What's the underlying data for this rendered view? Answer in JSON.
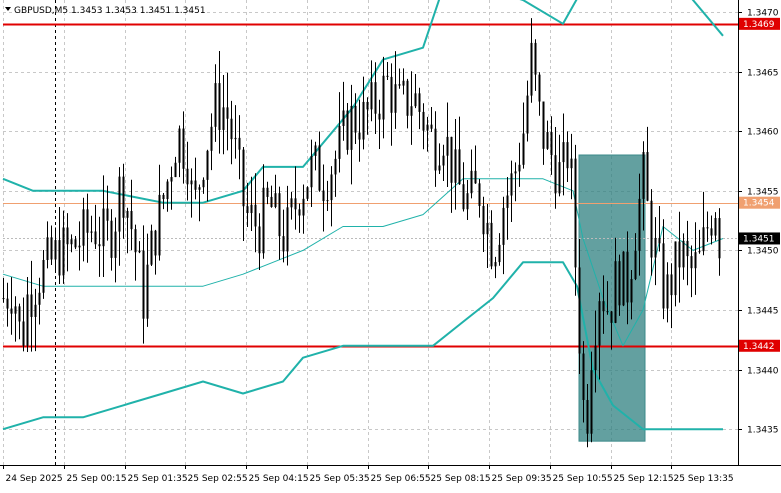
{
  "header": {
    "symbol_info": "GBPUSD,M5  1.3453 1.3453 1.3451 1.3451"
  },
  "colors": {
    "background": "#ffffff",
    "grid": "#c8c8c8",
    "candle": "#000000",
    "bollinger": "#20b2aa",
    "support_resistance": "#e00000",
    "current_price_line": "#f0a070",
    "highlight_zone": "#2f8080",
    "last_price_box": "#000000"
  },
  "price_labels": {
    "top": "1.3469",
    "current": "1.3454",
    "last": "1.3451",
    "bottom": "1.3442"
  },
  "time_axis": [
    "24 Sep 2025",
    "25 Sep 00:15",
    "25 Sep 01:35",
    "25 Sep 02:55",
    "25 Sep 04:15",
    "25 Sep 05:35",
    "25 Sep 06:55",
    "25 Sep 08:15",
    "25 Sep 09:35",
    "25 Sep 10:55",
    "25 Sep 12:15",
    "25 Sep 13:35"
  ],
  "chart_data": {
    "type": "candlestick",
    "symbol": "GBPUSD",
    "timeframe": "M5",
    "ylim": [
      1.3432,
      1.3471
    ],
    "y_ticks": [
      1.3435,
      1.344,
      1.3445,
      1.345,
      1.3455,
      1.346,
      1.3465,
      1.347
    ],
    "y_tick_labels": [
      "1.3435",
      "1.3440",
      "1.3445",
      "1.3450",
      "1.3455",
      "1.3460",
      "1.3465",
      "1.3470"
    ],
    "x_tick_labels": [
      "24 Sep 2025",
      "25 Sep 00:15",
      "25 Sep 01:35",
      "25 Sep 02:55",
      "25 Sep 04:15",
      "25 Sep 05:35",
      "25 Sep 06:55",
      "25 Sep 08:15",
      "25 Sep 09:35",
      "25 Sep 10:55",
      "25 Sep 12:15",
      "25 Sep 13:35"
    ],
    "horizontal_levels": [
      {
        "price": 1.3469,
        "style": "resistance"
      },
      {
        "price": 1.3442,
        "style": "support"
      },
      {
        "price": 1.3454,
        "style": "current"
      },
      {
        "price": 1.3451,
        "style": "last"
      }
    ],
    "highlight_zone": {
      "price_top": 1.3458,
      "price_bottom": 1.3434,
      "from_candle": 125,
      "to_candle": 138
    },
    "close_path": [
      [
        0,
        1.3446
      ],
      [
        10,
        1.3447
      ],
      [
        18,
        1.3442
      ],
      [
        24,
        1.3446
      ],
      [
        36,
        1.3448
      ],
      [
        48,
        1.3449
      ],
      [
        56,
        1.345
      ],
      [
        66,
        1.345
      ],
      [
        78,
        1.3451
      ],
      [
        90,
        1.3452
      ],
      [
        102,
        1.3451
      ],
      [
        110,
        1.3452
      ],
      [
        118,
        1.3456
      ],
      [
        128,
        1.3452
      ],
      [
        140,
        1.3446
      ],
      [
        150,
        1.3451
      ],
      [
        162,
        1.3455
      ],
      [
        174,
        1.346
      ],
      [
        184,
        1.3458
      ],
      [
        190,
        1.3453
      ],
      [
        200,
        1.3458
      ],
      [
        212,
        1.3462
      ],
      [
        222,
        1.3462
      ],
      [
        230,
        1.3459
      ],
      [
        242,
        1.3453
      ],
      [
        256,
        1.3452
      ],
      [
        266,
        1.3454
      ],
      [
        274,
        1.3452
      ],
      [
        282,
        1.3451
      ],
      [
        296,
        1.3455
      ],
      [
        310,
        1.3457
      ],
      [
        320,
        1.3456
      ],
      [
        334,
        1.3458
      ],
      [
        346,
        1.3461
      ],
      [
        360,
        1.3461
      ],
      [
        370,
        1.3462
      ],
      [
        384,
        1.3464
      ],
      [
        396,
        1.3462
      ],
      [
        410,
        1.3463
      ],
      [
        420,
        1.3461
      ],
      [
        430,
        1.3459
      ],
      [
        440,
        1.346
      ],
      [
        452,
        1.3456
      ],
      [
        462,
        1.3454
      ],
      [
        476,
        1.3455
      ],
      [
        490,
        1.345
      ],
      [
        500,
        1.3454
      ],
      [
        510,
        1.3456
      ],
      [
        520,
        1.346
      ],
      [
        528,
        1.3466
      ],
      [
        538,
        1.346
      ],
      [
        548,
        1.3458
      ],
      [
        558,
        1.3456
      ],
      [
        566,
        1.3459
      ],
      [
        572,
        1.3449
      ],
      [
        578,
        1.344
      ],
      [
        582,
        1.3434
      ],
      [
        588,
        1.3442
      ],
      [
        596,
        1.3447
      ],
      [
        606,
        1.3445
      ],
      [
        614,
        1.3448
      ],
      [
        624,
        1.3447
      ],
      [
        632,
        1.3452
      ],
      [
        640,
        1.3456
      ],
      [
        646,
        1.3452
      ],
      [
        654,
        1.3449
      ],
      [
        662,
        1.3446
      ],
      [
        670,
        1.3448
      ],
      [
        678,
        1.345
      ],
      [
        686,
        1.3448
      ],
      [
        696,
        1.3449
      ],
      [
        704,
        1.3452
      ],
      [
        712,
        1.3454
      ],
      [
        716,
        1.3451
      ]
    ],
    "bollinger_upper": [
      [
        0,
        1.3456
      ],
      [
        30,
        1.3455
      ],
      [
        60,
        1.3455
      ],
      [
        100,
        1.3455
      ],
      [
        160,
        1.3454
      ],
      [
        200,
        1.3454
      ],
      [
        240,
        1.3455
      ],
      [
        260,
        1.3457
      ],
      [
        300,
        1.3457
      ],
      [
        330,
        1.346
      ],
      [
        350,
        1.3462
      ],
      [
        380,
        1.3466
      ],
      [
        420,
        1.3467
      ],
      [
        440,
        1.3472
      ],
      [
        480,
        1.3472
      ],
      [
        520,
        1.3471
      ],
      [
        560,
        1.3469
      ],
      [
        580,
        1.3472
      ],
      [
        600,
        1.3478
      ],
      [
        640,
        1.3478
      ],
      [
        680,
        1.3472
      ],
      [
        720,
        1.3468
      ]
    ],
    "bollinger_middle": [
      [
        0,
        1.3448
      ],
      [
        40,
        1.3447
      ],
      [
        100,
        1.3447
      ],
      [
        160,
        1.3447
      ],
      [
        200,
        1.3447
      ],
      [
        240,
        1.3448
      ],
      [
        270,
        1.3449
      ],
      [
        300,
        1.345
      ],
      [
        340,
        1.3452
      ],
      [
        380,
        1.3452
      ],
      [
        420,
        1.3453
      ],
      [
        460,
        1.3456
      ],
      [
        500,
        1.3456
      ],
      [
        540,
        1.3456
      ],
      [
        570,
        1.3455
      ],
      [
        580,
        1.3451
      ],
      [
        600,
        1.3446
      ],
      [
        620,
        1.3442
      ],
      [
        640,
        1.3445
      ],
      [
        660,
        1.3452
      ],
      [
        690,
        1.345
      ],
      [
        720,
        1.3451
      ]
    ],
    "bollinger_lower": [
      [
        0,
        1.3435
      ],
      [
        40,
        1.3436
      ],
      [
        80,
        1.3436
      ],
      [
        120,
        1.3437
      ],
      [
        160,
        1.3438
      ],
      [
        200,
        1.3439
      ],
      [
        240,
        1.3438
      ],
      [
        280,
        1.3439
      ],
      [
        300,
        1.3441
      ],
      [
        340,
        1.3442
      ],
      [
        380,
        1.3442
      ],
      [
        430,
        1.3442
      ],
      [
        460,
        1.3444
      ],
      [
        490,
        1.3446
      ],
      [
        520,
        1.3449
      ],
      [
        560,
        1.3449
      ],
      [
        574,
        1.3447
      ],
      [
        590,
        1.344
      ],
      [
        610,
        1.3437
      ],
      [
        640,
        1.3435
      ],
      [
        680,
        1.3435
      ],
      [
        720,
        1.3435
      ]
    ]
  }
}
